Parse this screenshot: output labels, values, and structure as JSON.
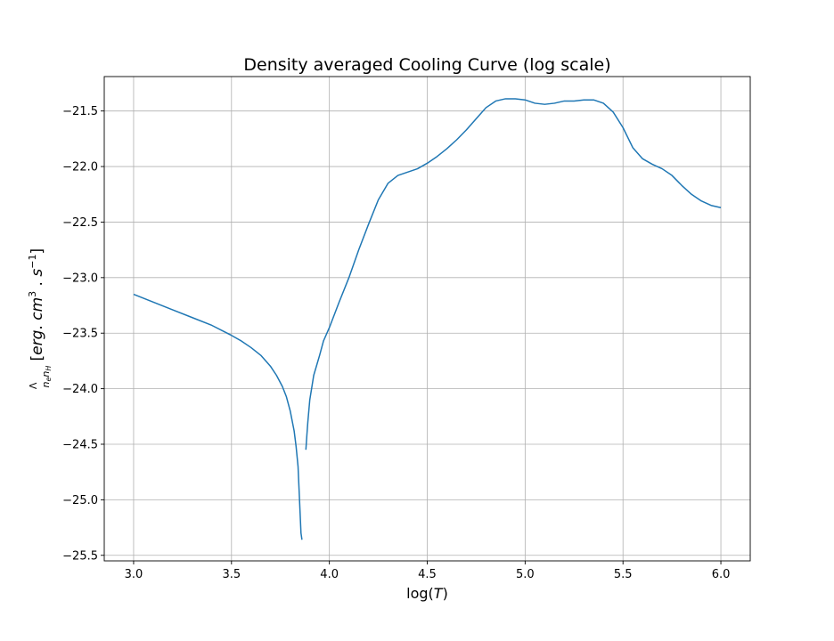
{
  "chart_data": {
    "type": "line",
    "title": "Density averaged Cooling Curve (log scale)",
    "xlabel": "log(T)",
    "ylabel": "Λ/(n_e n_H) [erg. cm^3 . s^-1]",
    "xlim": [
      2.85,
      6.15
    ],
    "ylim": [
      -25.55,
      -21.19
    ],
    "xticks": [
      3.0,
      3.5,
      4.0,
      4.5,
      5.0,
      5.5,
      6.0
    ],
    "xtick_labels": [
      "3.0",
      "3.5",
      "4.0",
      "4.5",
      "5.0",
      "5.5",
      "6.0"
    ],
    "yticks": [
      -21.5,
      -22.0,
      -22.5,
      -23.0,
      -23.5,
      -24.0,
      -24.5,
      -25.0,
      -25.5
    ],
    "ytick_labels": [
      "−21.5",
      "−22.0",
      "−22.5",
      "−23.0",
      "−23.5",
      "−24.0",
      "−24.5",
      "−25.0",
      "−25.5"
    ],
    "grid": true,
    "line_color": "#1f77b4",
    "segments": [
      {
        "x": [
          3.0,
          3.1,
          3.2,
          3.3,
          3.4,
          3.5,
          3.55,
          3.6,
          3.65,
          3.7,
          3.73,
          3.76,
          3.78,
          3.8,
          3.82,
          3.83,
          3.84,
          3.845,
          3.85,
          3.855,
          3.86
        ],
        "y": [
          -23.15,
          -23.22,
          -23.29,
          -23.36,
          -23.43,
          -23.52,
          -23.57,
          -23.63,
          -23.7,
          -23.8,
          -23.88,
          -23.98,
          -24.07,
          -24.2,
          -24.38,
          -24.52,
          -24.7,
          -24.9,
          -25.1,
          -25.3,
          -25.36
        ]
      },
      {
        "x": [
          3.88,
          3.885,
          3.89,
          3.9,
          3.92,
          3.95,
          3.97,
          4.0,
          4.05,
          4.1,
          4.15,
          4.2,
          4.25,
          4.3,
          4.35,
          4.4,
          4.45,
          4.5,
          4.55,
          4.6,
          4.65,
          4.7,
          4.75,
          4.8,
          4.85,
          4.9,
          4.95,
          5.0,
          5.05,
          5.1,
          5.15,
          5.2,
          5.25,
          5.3,
          5.35,
          5.4,
          5.45,
          5.5,
          5.55,
          5.6,
          5.65,
          5.7,
          5.75,
          5.8,
          5.85,
          5.9,
          5.95,
          6.0
        ],
        "y": [
          -24.55,
          -24.42,
          -24.3,
          -24.1,
          -23.88,
          -23.7,
          -23.57,
          -23.45,
          -23.22,
          -23.0,
          -22.75,
          -22.52,
          -22.3,
          -22.15,
          -22.08,
          -22.05,
          -22.02,
          -21.97,
          -21.91,
          -21.84,
          -21.76,
          -21.67,
          -21.57,
          -21.47,
          -21.41,
          -21.39,
          -21.39,
          -21.4,
          -21.43,
          -21.44,
          -21.43,
          -21.41,
          -21.41,
          -21.4,
          -21.4,
          -21.43,
          -21.51,
          -21.65,
          -21.83,
          -21.93,
          -21.98,
          -22.02,
          -22.08,
          -22.17,
          -22.25,
          -22.31,
          -22.35,
          -22.37
        ]
      }
    ]
  }
}
